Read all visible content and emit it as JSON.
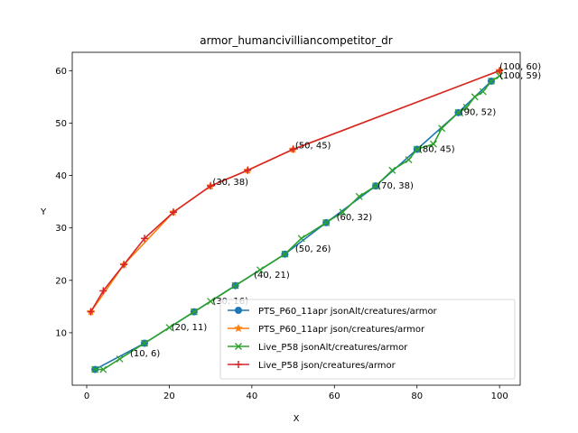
{
  "chart_data": {
    "type": "line",
    "title": "armor_humancivilliancompetitor_dr",
    "xlabel": "X",
    "ylabel": "Y",
    "xlim": [
      -3.5,
      105
    ],
    "ylim": [
      0,
      63.5
    ],
    "xticks": [
      0,
      20,
      40,
      60,
      80,
      100
    ],
    "yticks": [
      10,
      20,
      30,
      40,
      50,
      60
    ],
    "legend_position": "lower-right",
    "series": [
      {
        "name": "PTS_P60_11apr jsonAlt/creatures/armor",
        "color": "#1f77b4",
        "marker": "circle",
        "x": [
          2,
          14,
          26,
          36,
          48,
          58,
          70,
          80,
          90,
          98
        ],
        "y": [
          3,
          8,
          14,
          19,
          25,
          31,
          38,
          45,
          52,
          58
        ]
      },
      {
        "name": "PTS_P60_11apr json/creatures/armor",
        "color": "#ff7f0e",
        "marker": "star",
        "x": [
          1,
          9,
          21,
          30,
          39,
          50,
          100
        ],
        "y": [
          14,
          23,
          33,
          38,
          41,
          45,
          60
        ]
      },
      {
        "name": "Live_P58 jsonAlt/creatures/armor",
        "color": "#2ca02c",
        "marker": "x",
        "x": [
          2,
          4,
          8,
          14,
          20,
          26,
          30,
          36,
          42,
          48,
          52,
          58,
          62,
          66,
          70,
          74,
          78,
          80,
          84,
          86,
          90,
          92,
          94,
          96,
          98,
          100
        ],
        "y": [
          3,
          3,
          5,
          8,
          11,
          14,
          16,
          19,
          22,
          25,
          28,
          31,
          33,
          36,
          38,
          41,
          43,
          45,
          46,
          49,
          52,
          53,
          55,
          56,
          58,
          59
        ]
      },
      {
        "name": "Live_P58 json/creatures/armor",
        "color": "#d62728",
        "marker": "plus",
        "x": [
          1,
          4,
          9,
          14,
          21,
          30,
          39,
          50,
          100
        ],
        "y": [
          14,
          18,
          23,
          28,
          33,
          38,
          41,
          45,
          60
        ]
      }
    ],
    "annotations": [
      {
        "text": "(10, 6)",
        "x": 10.5,
        "y": 5.5
      },
      {
        "text": "(20, 11)",
        "x": 20.5,
        "y": 10.5
      },
      {
        "text": "(30, 16)",
        "x": 30.5,
        "y": 15.5
      },
      {
        "text": "(40, 21)",
        "x": 40.5,
        "y": 20.5
      },
      {
        "text": "(50, 26)",
        "x": 50.5,
        "y": 25.5
      },
      {
        "text": "(60, 32)",
        "x": 60.5,
        "y": 31.5
      },
      {
        "text": "(70, 38)",
        "x": 70.5,
        "y": 37.5
      },
      {
        "text": "(80, 45)",
        "x": 80.5,
        "y": 44.5
      },
      {
        "text": "(90, 52)",
        "x": 90.5,
        "y": 51.5
      },
      {
        "text": "(100, 59)",
        "x": 100,
        "y": 58.5
      },
      {
        "text": "(30, 38)",
        "x": 30.5,
        "y": 38.2
      },
      {
        "text": "(50, 45)",
        "x": 50.5,
        "y": 45.2
      },
      {
        "text": "(100, 60)",
        "x": 100,
        "y": 60.2
      }
    ]
  }
}
